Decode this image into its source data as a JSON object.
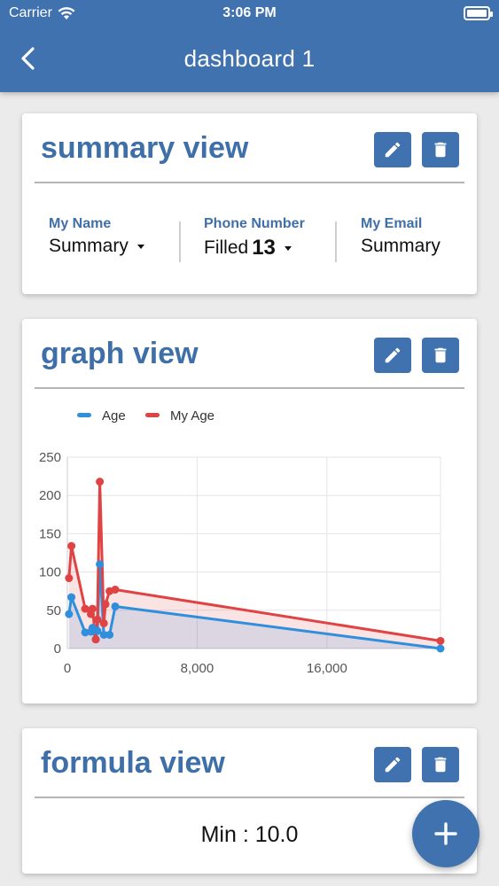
{
  "status_bar": {
    "carrier": "Carrier",
    "time": "3:06 PM"
  },
  "nav": {
    "title": "dashboard 1",
    "back_icon": "chevron-left-icon"
  },
  "summary_card": {
    "title": "summary view",
    "columns": [
      {
        "label": "My Name",
        "value": "Summary",
        "has_dropdown": true
      },
      {
        "label": "Phone Number",
        "prefix": "Filled",
        "count": "13",
        "has_dropdown": true
      },
      {
        "label": "My Email",
        "value": "Summary",
        "has_dropdown": false
      }
    ]
  },
  "graph_card": {
    "title": "graph view"
  },
  "formula_card": {
    "title": "formula view",
    "value": "Min : 10.0"
  },
  "colors": {
    "primary": "#3f72af",
    "title": "#3f6fa8",
    "age": "#2f8fdc",
    "my_age": "#e04343"
  },
  "chart_data": {
    "type": "line",
    "xlim": [
      0,
      23000
    ],
    "ylim": [
      0,
      250
    ],
    "x_ticks": [
      "0",
      "8,000",
      "16,000"
    ],
    "x_tick_values": [
      0,
      8000,
      16000
    ],
    "y_ticks": [
      "250",
      "200",
      "150",
      "100",
      "50",
      "0"
    ],
    "y_tick_values": [
      250,
      200,
      150,
      100,
      50,
      0
    ],
    "grid": true,
    "legend_position": "top-left",
    "series": [
      {
        "name": "Age",
        "color": "#2f8fdc",
        "points": [
          [
            100,
            45
          ],
          [
            250,
            67
          ],
          [
            1100,
            21
          ],
          [
            1450,
            22
          ],
          [
            1550,
            27
          ],
          [
            1750,
            12
          ],
          [
            1850,
            23
          ],
          [
            2000,
            110
          ],
          [
            2250,
            18
          ],
          [
            2600,
            18
          ],
          [
            2950,
            55
          ],
          [
            23000,
            0
          ]
        ]
      },
      {
        "name": "My Age",
        "color": "#e04343",
        "points": [
          [
            100,
            92
          ],
          [
            250,
            134
          ],
          [
            1100,
            52
          ],
          [
            1450,
            45
          ],
          [
            1550,
            52
          ],
          [
            1750,
            12
          ],
          [
            1850,
            38
          ],
          [
            2000,
            218
          ],
          [
            2250,
            33
          ],
          [
            2350,
            58
          ],
          [
            2600,
            75
          ],
          [
            2950,
            77
          ],
          [
            23000,
            10
          ]
        ]
      }
    ]
  }
}
